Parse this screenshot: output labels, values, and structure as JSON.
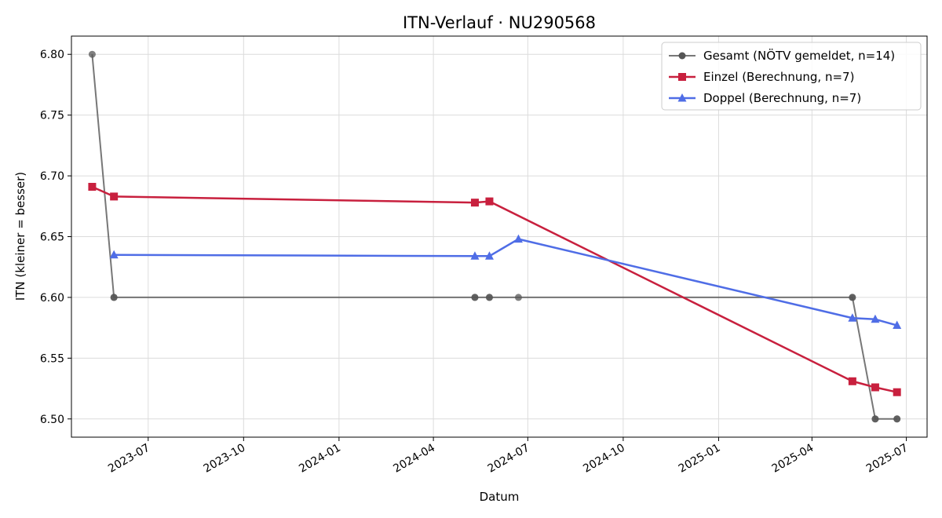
{
  "chart_data": {
    "type": "line",
    "title": "ITN-Verlauf · NU290568",
    "xlabel": "Datum",
    "ylabel": "ITN  (kleiner = besser)",
    "x_tick_labels": [
      "2023-07",
      "2023-10",
      "2024-01",
      "2024-04",
      "2024-07",
      "2024-10",
      "2025-01",
      "2025-04",
      "2025-07"
    ],
    "x_ticks": [
      "2023-07-01",
      "2023-10-01",
      "2024-01-01",
      "2024-04-01",
      "2024-07-01",
      "2024-10-01",
      "2025-01-01",
      "2025-04-01",
      "2025-07-01"
    ],
    "y_ticks": [
      6.5,
      6.55,
      6.6,
      6.65,
      6.7,
      6.75,
      6.8
    ],
    "xlim": [
      "2023-04-18",
      "2025-07-21"
    ],
    "ylim": [
      6.485,
      6.815
    ],
    "grid": true,
    "legend_position": "top-right",
    "series": [
      {
        "name": "Gesamt (NÖTV gemeldet, n=14)",
        "color": "#555555",
        "marker": "circle",
        "points": [
          {
            "x": "2023-05-08",
            "y": 6.8
          },
          {
            "x": "2023-05-29",
            "y": 6.6
          },
          {
            "x": "2023-05-29",
            "y": 6.6
          },
          {
            "x": "2024-05-11",
            "y": 6.6
          },
          {
            "x": "2024-05-11",
            "y": 6.6
          },
          {
            "x": "2024-05-25",
            "y": 6.6
          },
          {
            "x": "2024-05-25",
            "y": 6.6
          },
          {
            "x": "2024-06-22",
            "y": 6.6
          },
          {
            "x": "2025-05-10",
            "y": 6.6
          },
          {
            "x": "2025-05-10",
            "y": 6.6
          },
          {
            "x": "2025-06-01",
            "y": 6.5
          },
          {
            "x": "2025-06-01",
            "y": 6.5
          },
          {
            "x": "2025-06-22",
            "y": 6.5
          },
          {
            "x": "2025-06-22",
            "y": 6.5
          }
        ]
      },
      {
        "name": "Einzel (Berechnung, n=7)",
        "color": "#c8203e",
        "marker": "square",
        "points": [
          {
            "x": "2023-05-08",
            "y": 6.691
          },
          {
            "x": "2023-05-29",
            "y": 6.683
          },
          {
            "x": "2024-05-11",
            "y": 6.678
          },
          {
            "x": "2024-05-25",
            "y": 6.679
          },
          {
            "x": "2025-05-10",
            "y": 6.531
          },
          {
            "x": "2025-06-01",
            "y": 6.526
          },
          {
            "x": "2025-06-22",
            "y": 6.522
          }
        ]
      },
      {
        "name": "Doppel (Berechnung, n=7)",
        "color": "#4f6de6",
        "marker": "triangle",
        "points": [
          {
            "x": "2023-05-29",
            "y": 6.635
          },
          {
            "x": "2024-05-11",
            "y": 6.634
          },
          {
            "x": "2024-05-25",
            "y": 6.634
          },
          {
            "x": "2024-06-22",
            "y": 6.648
          },
          {
            "x": "2025-05-10",
            "y": 6.583
          },
          {
            "x": "2025-06-01",
            "y": 6.582
          },
          {
            "x": "2025-06-22",
            "y": 6.577
          }
        ]
      }
    ]
  }
}
